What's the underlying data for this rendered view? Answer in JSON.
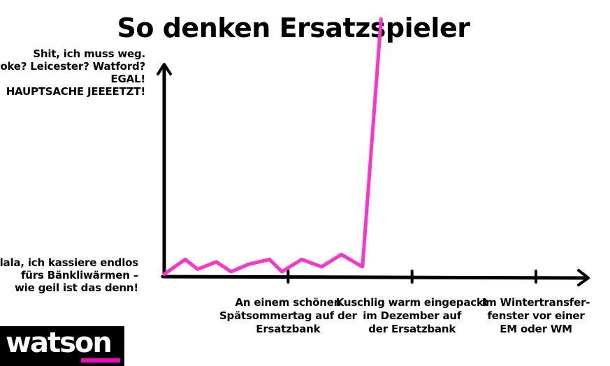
{
  "logo": {
    "text": "watson",
    "accent": "#ff00cc"
  },
  "chart_data": {
    "type": "line",
    "title": "So denken Ersatzspieler",
    "y_level_labels": {
      "top": [
        "Shit, ich muss weg.",
        "Stoke? Leicester? Watford?",
        "EGAL!",
        "HAUPTSACHE JEEEETZT!"
      ],
      "bottom": [
        "Lalala, ich kassiere endlos",
        "fürs Bänkliwärmen –",
        "wie geil ist das denn!"
      ]
    },
    "x_labels": [
      {
        "lines": [
          "An einem schönen",
          "Spätsommertag auf der",
          "Ersatzbank"
        ],
        "x": 1
      },
      {
        "lines": [
          "Kuschlig warm eingepackt",
          "im Dezember auf",
          "der Ersatzbank"
        ],
        "x": 2
      },
      {
        "lines": [
          "Im Wintertransfer-",
          "fenster vor einer",
          "EM oder WM"
        ],
        "x": 3
      }
    ],
    "xlim": [
      0,
      3.4
    ],
    "ylim": [
      0,
      1
    ],
    "series": [
      {
        "color": "#ff33cc",
        "points": [
          [
            0.0,
            0.01
          ],
          [
            0.17,
            0.07
          ],
          [
            0.27,
            0.03
          ],
          [
            0.42,
            0.06
          ],
          [
            0.54,
            0.02
          ],
          [
            0.68,
            0.05
          ],
          [
            0.85,
            0.07
          ],
          [
            0.95,
            0.02
          ],
          [
            1.11,
            0.07
          ],
          [
            1.27,
            0.04
          ],
          [
            1.43,
            0.09
          ],
          [
            1.6,
            0.04
          ],
          [
            1.75,
            1.05
          ]
        ]
      }
    ],
    "axis_color": "#000000",
    "grid": false
  }
}
